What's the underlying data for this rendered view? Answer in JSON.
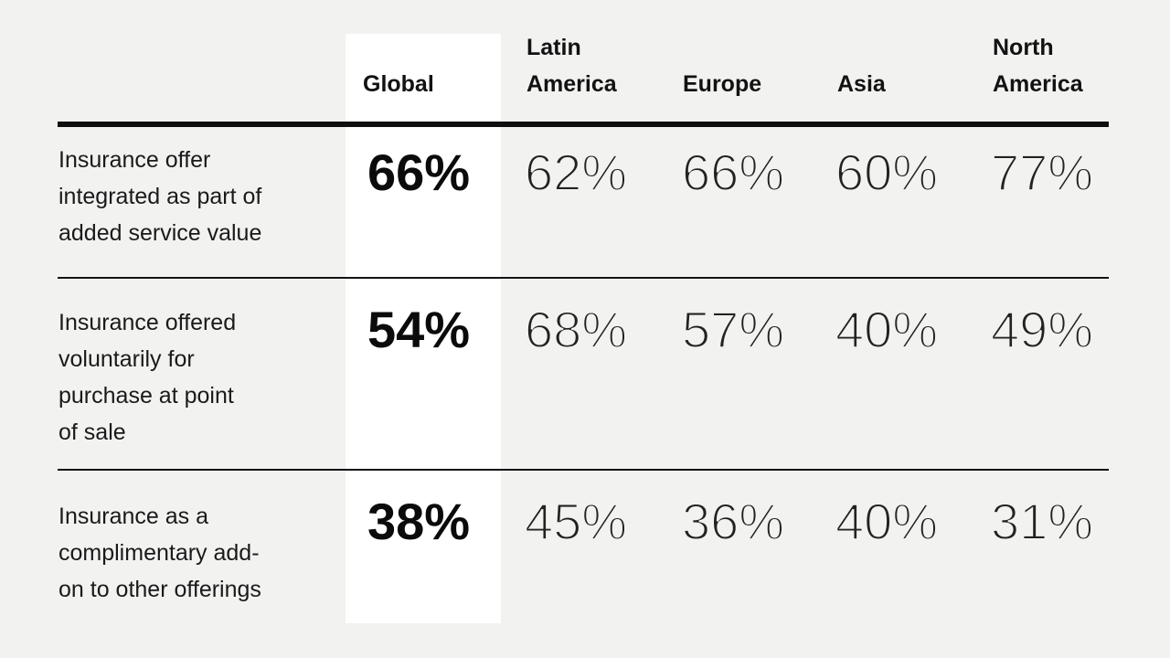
{
  "page": {
    "background_color": "#f2f2f1",
    "highlight_color": "#ffffff",
    "text_color": "#121212",
    "rule_color": "#0f0f0f"
  },
  "table": {
    "columns": [
      {
        "label": "Global",
        "highlighted": true
      },
      {
        "label": "Latin\nAmerica",
        "highlighted": false
      },
      {
        "label": "Europe",
        "highlighted": false
      },
      {
        "label": "Asia",
        "highlighted": false
      },
      {
        "label": "North\nAmerica",
        "highlighted": false
      }
    ],
    "rows": [
      {
        "label": "Insurance offer\nintegrated as part of\nadded service value",
        "values": [
          "66%",
          "62%",
          "66%",
          "60%",
          "77%"
        ]
      },
      {
        "label": "Insurance offered\nvoluntarily for\npurchase at point\nof sale",
        "values": [
          "54%",
          "68%",
          "57%",
          "40%",
          "49%"
        ]
      },
      {
        "label": "Insurance as a\ncomplimentary add-\non to other offerings",
        "values": [
          "38%",
          "45%",
          "36%",
          "40%",
          "31%"
        ]
      }
    ]
  },
  "chart_data": {
    "type": "table",
    "title": "",
    "unit": "%",
    "columns": [
      "Global",
      "Latin America",
      "Europe",
      "Asia",
      "North America"
    ],
    "highlighted_column": "Global",
    "rows": [
      {
        "label": "Insurance offer integrated as part of added service value",
        "values": [
          66,
          62,
          66,
          60,
          77
        ]
      },
      {
        "label": "Insurance offered voluntarily for purchase at point of sale",
        "values": [
          54,
          68,
          57,
          40,
          49
        ]
      },
      {
        "label": "Insurance as a complimentary add-on to other offerings",
        "values": [
          38,
          45,
          36,
          40,
          31
        ]
      }
    ]
  }
}
